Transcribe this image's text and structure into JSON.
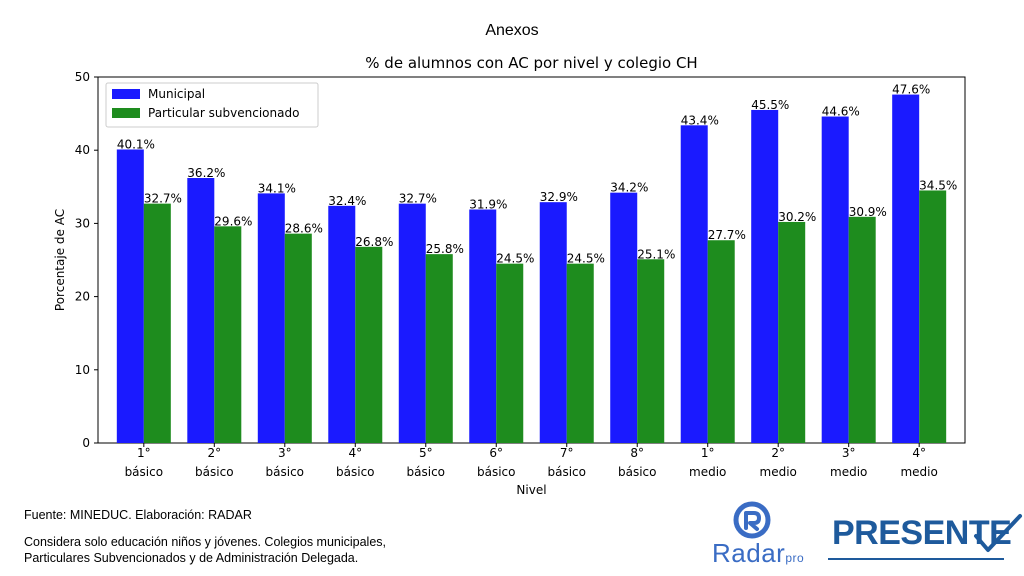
{
  "slide": {
    "title": "Anexos",
    "source_note": "Fuente: MINEDUC. Elaboración: RADAR",
    "note_line1": "Considera solo educación niños y jóvenes. Colegios municipales,",
    "note_line2": "Particulares Subvencionados y de Administración Delegada."
  },
  "logos": {
    "radar": {
      "word": "Radar",
      "suffix": "pro",
      "color": "#3a6cc4"
    },
    "presente": {
      "word": "PRESENTE",
      "color": "#1e5a9c"
    }
  },
  "chart_data": {
    "type": "bar",
    "title": "% de alumnos con AC por nivel y colegio CH",
    "xlabel": "Nivel",
    "ylabel": "Porcentaje de AC",
    "ylim": [
      0,
      50
    ],
    "yticks": [
      0,
      10,
      20,
      30,
      40,
      50
    ],
    "grid": false,
    "legend_position": "top-left",
    "categories": [
      [
        "1°",
        "básico"
      ],
      [
        "2°",
        "básico"
      ],
      [
        "3°",
        "básico"
      ],
      [
        "4°",
        "básico"
      ],
      [
        "5°",
        "básico"
      ],
      [
        "6°",
        "básico"
      ],
      [
        "7°",
        "básico"
      ],
      [
        "8°",
        "básico"
      ],
      [
        "1°",
        "medio"
      ],
      [
        "2°",
        "medio"
      ],
      [
        "3°",
        "medio"
      ],
      [
        "4°",
        "medio"
      ]
    ],
    "series": [
      {
        "name": "Municipal",
        "color": "#1a1aff",
        "values": [
          40.1,
          36.2,
          34.1,
          32.4,
          32.7,
          31.9,
          32.9,
          34.2,
          43.4,
          45.5,
          44.6,
          47.6
        ],
        "labels": [
          "40.1%",
          "36.2%",
          "34.1%",
          "32.4%",
          "32.7%",
          "31.9%",
          "32.9%",
          "34.2%",
          "43.4%",
          "45.5%",
          "44.6%",
          "47.6%"
        ]
      },
      {
        "name": "Particular subvencionado",
        "color": "#1e8c1e",
        "values": [
          32.7,
          29.6,
          28.6,
          26.8,
          25.8,
          24.5,
          24.5,
          25.1,
          27.7,
          30.2,
          30.9,
          34.5
        ],
        "labels": [
          "32.7%",
          "29.6%",
          "28.6%",
          "26.8%",
          "25.8%",
          "24.5%",
          "24.5%",
          "25.1%",
          "27.7%",
          "30.2%",
          "30.9%",
          "34.5%"
        ]
      }
    ]
  }
}
